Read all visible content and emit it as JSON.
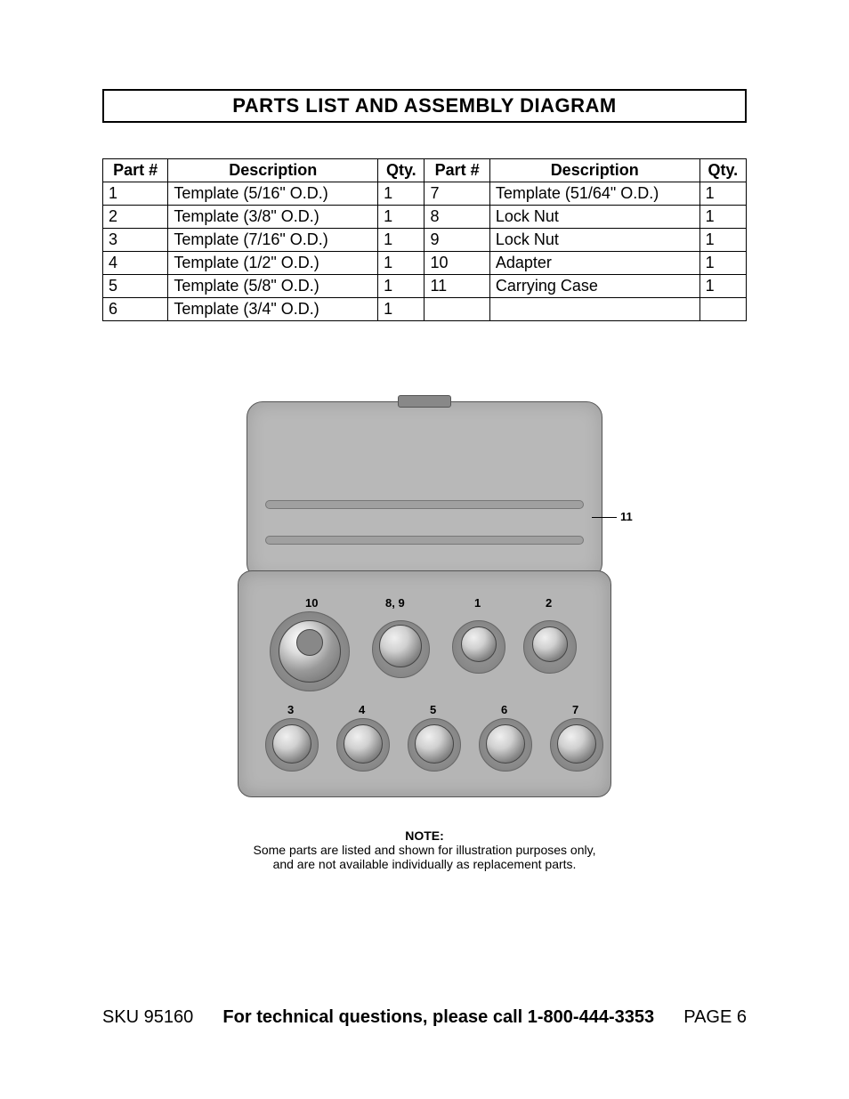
{
  "title": "PARTS LIST AND ASSEMBLY DIAGRAM",
  "table": {
    "headers": {
      "part_no": "Part #",
      "description": "Description",
      "qty": "Qty."
    },
    "left_rows": [
      {
        "part_no": "1",
        "description": "Template (5/16\" O.D.)",
        "qty": "1"
      },
      {
        "part_no": "2",
        "description": "Template (3/8\" O.D.)",
        "qty": "1"
      },
      {
        "part_no": "3",
        "description": "Template (7/16\" O.D.)",
        "qty": "1"
      },
      {
        "part_no": "4",
        "description": "Template (1/2\" O.D.)",
        "qty": "1"
      },
      {
        "part_no": "5",
        "description": "Template (5/8\" O.D.)",
        "qty": "1"
      },
      {
        "part_no": "6",
        "description": "Template (3/4\" O.D.)",
        "qty": "1"
      }
    ],
    "right_rows": [
      {
        "part_no": "7",
        "description": "Template (51/64\" O.D.)",
        "qty": "1"
      },
      {
        "part_no": "8",
        "description": "Lock Nut",
        "qty": "1"
      },
      {
        "part_no": "9",
        "description": "Lock Nut",
        "qty": "1"
      },
      {
        "part_no": "10",
        "description": "Adapter",
        "qty": "1"
      },
      {
        "part_no": "11",
        "description": "Carrying Case",
        "qty": "1"
      },
      {
        "part_no": "",
        "description": "",
        "qty": ""
      }
    ]
  },
  "diagram": {
    "callouts": {
      "c11": "11",
      "c10": "10",
      "c89": "8, 9",
      "c1": "1",
      "c2": "2",
      "c3": "3",
      "c4": "4",
      "c5": "5",
      "c6": "6",
      "c7": "7"
    }
  },
  "note": {
    "title": "NOTE:",
    "line1": "Some parts are listed and shown for illustration purposes only,",
    "line2": "and are not available individually as replacement parts."
  },
  "footer": {
    "sku": "SKU 95160",
    "center": "For technical questions, please call 1-800-444-3353",
    "page": "PAGE 6"
  }
}
